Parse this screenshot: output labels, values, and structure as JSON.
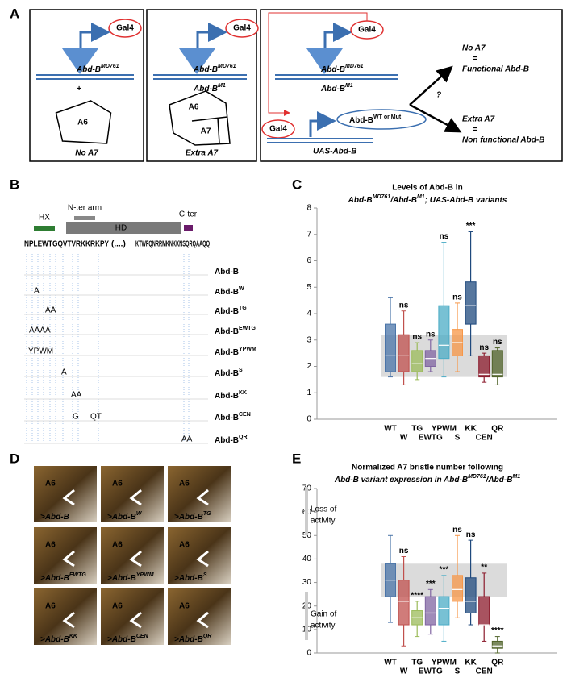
{
  "panel_a": {
    "label": "A",
    "box1": {
      "gal4": "Gal4",
      "driver": {
        "text": "Abd-B",
        "sup": "MD761"
      },
      "allele": {
        "text": "+"
      },
      "segments": [
        "A6"
      ],
      "caption": "No A7"
    },
    "box2": {
      "gal4": "Gal4",
      "driver": {
        "text": "Abd-B",
        "sup": "MD761"
      },
      "allele": {
        "text": "Abd-B",
        "sup": "M1"
      },
      "segments": [
        "A6",
        "A7"
      ],
      "caption": "Extra A7"
    },
    "box3": {
      "gal4": "Gal4",
      "driver": {
        "text": "Abd-B",
        "sup": "MD761"
      },
      "allele": {
        "text": "Abd-B",
        "sup": "M1"
      },
      "gal4_uas": "Gal4",
      "transgene": {
        "text": "Abd-B",
        "sup": "WT or Mut"
      },
      "uas": "UAS-Abd-B",
      "question": "?",
      "outcomes": [
        {
          "line1": "No A7",
          "eq": "=",
          "line2": "Functional Abd-B"
        },
        {
          "line1": "Extra A7",
          "eq": "=",
          "line2": "Non functional Abd-B"
        }
      ]
    }
  },
  "panel_b": {
    "label": "B",
    "domains": [
      "HX",
      "N-ter arm",
      "HD",
      "C-ter"
    ],
    "sequence": {
      "left": "NPLEWTGQVTVRKKRKPY",
      "gap": "(....)",
      "right": "KTWFQNRRMKNKKNSQRQAAQQ"
    },
    "variants": [
      {
        "name": {
          "text": "Abd-B"
        },
        "mutations": []
      },
      {
        "name": {
          "text": "Abd-B",
          "sup": "W"
        },
        "mutations": [
          "A"
        ]
      },
      {
        "name": {
          "text": "Abd-B",
          "sup": "TG"
        },
        "mutations": [
          "AA"
        ]
      },
      {
        "name": {
          "text": "Abd-B",
          "sup": "EWTG"
        },
        "mutations": [
          "AAAA"
        ]
      },
      {
        "name": {
          "text": "Abd-B",
          "sup": "YPWM"
        },
        "mutations": [
          "YPWM"
        ]
      },
      {
        "name": {
          "text": "Abd-B",
          "sup": "S"
        },
        "mutations": [
          "A"
        ]
      },
      {
        "name": {
          "text": "Abd-B",
          "sup": "KK"
        },
        "mutations": [
          "AA"
        ]
      },
      {
        "name": {
          "text": "Abd-B",
          "sup": "CEN"
        },
        "mutations": [
          "G",
          "QT"
        ]
      },
      {
        "name": {
          "text": "Abd-B",
          "sup": "QR"
        },
        "mutations": [
          "AA"
        ]
      }
    ]
  },
  "panel_d": {
    "label": "D",
    "images": [
      {
        "segment": "A6",
        "caption": {
          "text": ">Abd-B"
        }
      },
      {
        "segment": "A6",
        "caption": {
          "text": ">Abd-B",
          "sup": "W"
        }
      },
      {
        "segment": "A6",
        "caption": {
          "text": ">Abd-B",
          "sup": "TG"
        }
      },
      {
        "segment": "A6",
        "caption": {
          "text": ">Abd-B",
          "sup": "EWTG"
        }
      },
      {
        "segment": "A6",
        "caption": {
          "text": ">Abd-B",
          "sup": "YPWM"
        }
      },
      {
        "segment": "A6",
        "caption": {
          "text": ">Abd-B",
          "sup": "S"
        }
      },
      {
        "segment": "A6",
        "caption": {
          "text": ">Abd-B",
          "sup": "KK"
        }
      },
      {
        "segment": "A6",
        "caption": {
          "text": ">Abd-B",
          "sup": "CEN"
        }
      },
      {
        "segment": "A6",
        "caption": {
          "text": ">Abd-B",
          "sup": "QR"
        }
      }
    ]
  },
  "chart_data": [
    {
      "type": "box",
      "panel": "C",
      "title": {
        "line1": "Levels of Abd-B in",
        "line2": [
          {
            "text": "Abd-B",
            "sup": "MD761"
          },
          {
            "text": "/Abd-B",
            "sup": "M1"
          },
          {
            "text": "; UAS-Abd-B variants"
          }
        ]
      },
      "categories": [
        "WT",
        "W",
        "TG",
        "EWTG",
        "YPWM",
        "S",
        "KK",
        "CEN",
        "QR"
      ],
      "colors": [
        "#4a74a8",
        "#c0504d",
        "#9bbb59",
        "#8064a2",
        "#4bacc6",
        "#f79646",
        "#1f497d",
        "#8b1a2b",
        "#4f6228"
      ],
      "values": [
        [
          1.6,
          1.8,
          2.4,
          3.6,
          4.6
        ],
        [
          1.3,
          1.8,
          2.4,
          3.2,
          4.1
        ],
        [
          1.5,
          1.8,
          2.1,
          2.6,
          2.9
        ],
        [
          1.8,
          2.0,
          2.3,
          2.6,
          3.0
        ],
        [
          1.6,
          2.3,
          2.8,
          4.3,
          6.7
        ],
        [
          1.8,
          2.4,
          2.9,
          3.4,
          4.4
        ],
        [
          2.4,
          3.6,
          4.3,
          5.2,
          7.1
        ],
        [
          1.4,
          1.6,
          1.7,
          2.4,
          2.5
        ],
        [
          1.3,
          1.6,
          1.7,
          2.6,
          2.7
        ]
      ],
      "significance": [
        null,
        "ns",
        "ns",
        "ns",
        "ns",
        "ns",
        "***",
        "ns",
        "ns"
      ],
      "band": [
        1.6,
        3.2
      ],
      "ylim": [
        0,
        8
      ],
      "yticks": [
        0,
        1,
        2,
        3,
        4,
        5,
        6,
        7,
        8
      ]
    },
    {
      "type": "box",
      "panel": "E",
      "title": {
        "line1": "Normalized A7 bristle number following",
        "line2": [
          {
            "text": "Abd-B variant expression in Abd-B",
            "sup": "MD761"
          },
          {
            "text": "/Abd-B",
            "sup": "M1"
          }
        ]
      },
      "categories": [
        "WT",
        "W",
        "TG",
        "EWTG",
        "YPWM",
        "S",
        "KK",
        "CEN",
        "QR"
      ],
      "colors": [
        "#4a74a8",
        "#c0504d",
        "#9bbb59",
        "#8064a2",
        "#4bacc6",
        "#f79646",
        "#1f497d",
        "#8b1a2b",
        "#4f6228"
      ],
      "values": [
        [
          13,
          24,
          31,
          38,
          50
        ],
        [
          3,
          12,
          22,
          31,
          41
        ],
        [
          7,
          12,
          15,
          18,
          22
        ],
        [
          8,
          12,
          17,
          24,
          27
        ],
        [
          5,
          12,
          19,
          24,
          33
        ],
        [
          15,
          22,
          27,
          33,
          50
        ],
        [
          12,
          17,
          22,
          32,
          48
        ],
        [
          5,
          12,
          12,
          24,
          34
        ],
        [
          0,
          2,
          3,
          5,
          7
        ]
      ],
      "significance": [
        null,
        "ns",
        "****",
        "***",
        "***",
        "ns",
        "ns",
        "**",
        "****"
      ],
      "annotations": [
        [
          "Loss of",
          "activity"
        ],
        [
          "Gain of",
          "activity"
        ]
      ],
      "band": [
        24,
        38
      ],
      "ylim": [
        0,
        70
      ],
      "yticks": [
        0,
        10,
        20,
        30,
        40,
        50,
        60,
        70
      ]
    }
  ]
}
